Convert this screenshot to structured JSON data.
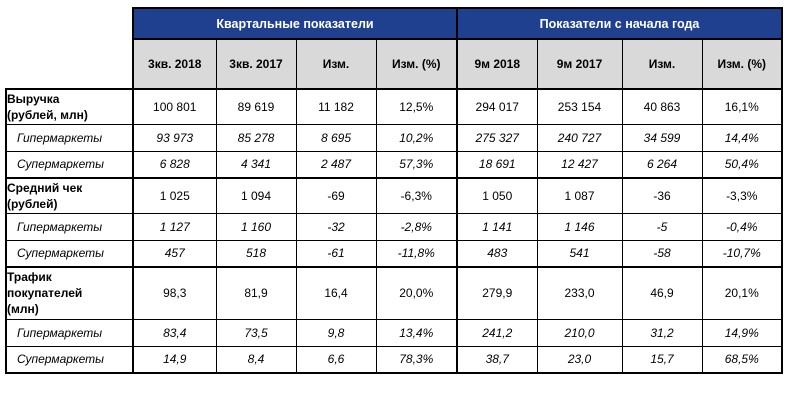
{
  "headers": {
    "quarterly": "Квартальные показатели",
    "ytd": "Показатели с начала года",
    "columns": [
      "3кв.\n2018",
      "3кв.\n2017",
      "Изм.",
      "Изм. (%)",
      "9м\n2018",
      "9м\n2017",
      "Изм.",
      "Изм. (%)"
    ]
  },
  "rows": [
    {
      "label": "Выручка\n(рублей, млн)",
      "type": "main",
      "values": [
        "100 801",
        "89 619",
        "11 182",
        "12,5%",
        "294 017",
        "253 154",
        "40 863",
        "16,1%"
      ]
    },
    {
      "label": "Гипермаркеты",
      "type": "sub",
      "values": [
        "93 973",
        "85 278",
        "8 695",
        "10,2%",
        "275 327",
        "240 727",
        "34 599",
        "14,4%"
      ]
    },
    {
      "label": "Супермаркеты",
      "type": "sub",
      "values": [
        "6 828",
        "4 341",
        "2 487",
        "57,3%",
        "18 691",
        "12 427",
        "6 264",
        "50,4%"
      ]
    },
    {
      "label": "Средний чек\n(рублей)",
      "type": "main",
      "values": [
        "1 025",
        "1 094",
        "-69",
        "-6,3%",
        "1 050",
        "1 087",
        "-36",
        "-3,3%"
      ]
    },
    {
      "label": "Гипермаркеты",
      "type": "sub",
      "values": [
        "1 127",
        "1 160",
        "-32",
        "-2,8%",
        "1 141",
        "1 146",
        "-5",
        "-0,4%"
      ]
    },
    {
      "label": "Супермаркеты",
      "type": "sub",
      "values": [
        "457",
        "518",
        "-61",
        "-11,8%",
        "483",
        "541",
        "-58",
        "-10,7%"
      ]
    },
    {
      "label": "Трафик\nпокупателей\n(млн)",
      "type": "main",
      "values": [
        "98,3",
        "81,9",
        "16,4",
        "20,0%",
        "279,9",
        "233,0",
        "46,9",
        "20,1%"
      ]
    },
    {
      "label": "Гипермаркеты",
      "type": "sub",
      "values": [
        "83,4",
        "73,5",
        "9,8",
        "13,4%",
        "241,2",
        "210,0",
        "31,2",
        "14,9%"
      ]
    },
    {
      "label": "Супермаркеты",
      "type": "sub",
      "values": [
        "14,9",
        "8,4",
        "6,6",
        "78,3%",
        "38,7",
        "23,0",
        "15,7",
        "68,5%"
      ]
    }
  ],
  "colors": {
    "header_bg": "#1f3f8f",
    "header_text": "#ffffff",
    "subheader_bg": "#d9d9d9"
  }
}
